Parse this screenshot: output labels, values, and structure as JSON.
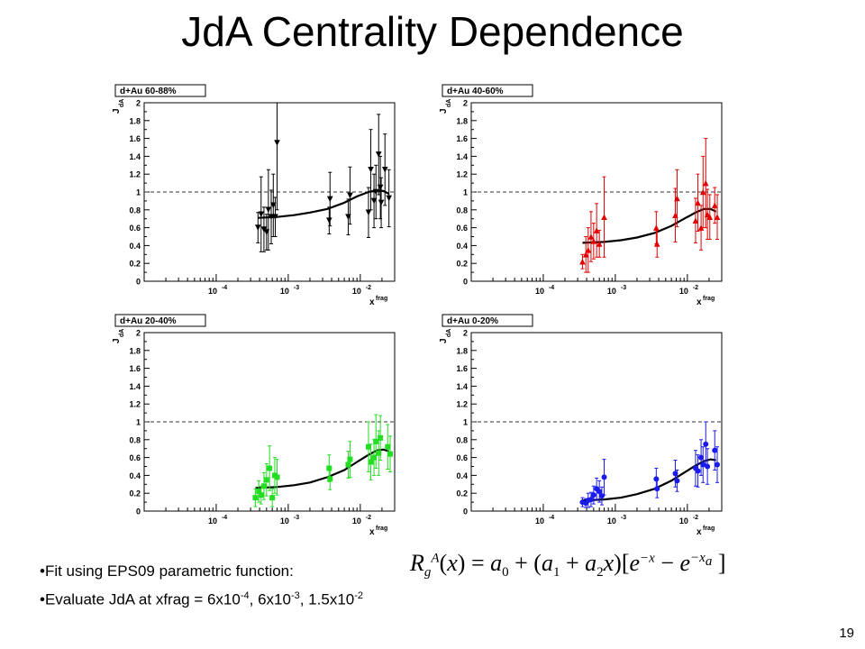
{
  "slide": {
    "title": "JdA Centrality Dependence",
    "bullet1": "Fit using EPS09 parametric function:",
    "bullet2_text": "Evaluate JdA at xfrag = 6x10",
    "bullet2_exp1": "-4",
    "bullet2_mid1": ", 6x10",
    "bullet2_exp2": "-3",
    "bullet2_mid2": ", 1.5x10",
    "bullet2_exp3": "-2",
    "page_number": "19"
  },
  "chart_data": [
    {
      "type": "scatter",
      "title": "d+Au 60-88%",
      "xlabel": "x frag",
      "ylabel": "J dA",
      "xscale": "log",
      "xlim": [
        1e-05,
        0.03
      ],
      "ylim": [
        0,
        2
      ],
      "yticks": [
        "0",
        "0.2",
        "0.4",
        "0.6",
        "0.8",
        "1",
        "1.2",
        "1.4",
        "1.6",
        "1.8",
        "2"
      ],
      "xticks": [
        "10^-4",
        "10^-3",
        "10^-2"
      ],
      "reference_line": 1,
      "marker": "triangle-down",
      "color": "#000000",
      "points": [
        {
          "x": 0.00038,
          "y": 0.6,
          "err": 0.17
        },
        {
          "x": 0.00042,
          "y": 0.75,
          "err": 0.42
        },
        {
          "x": 0.00046,
          "y": 0.58,
          "err": 0.25
        },
        {
          "x": 0.0005,
          "y": 0.55,
          "err": 0.2
        },
        {
          "x": 0.00053,
          "y": 0.8,
          "err": 0.45
        },
        {
          "x": 0.00058,
          "y": 0.72,
          "err": 0.3
        },
        {
          "x": 0.00062,
          "y": 0.85,
          "err": 0.35
        },
        {
          "x": 0.00066,
          "y": 0.72,
          "err": 0.22
        },
        {
          "x": 0.0007,
          "y": 1.55,
          "err": 0.75
        },
        {
          "x": 0.0037,
          "y": 0.68,
          "err": 0.15
        },
        {
          "x": 0.0038,
          "y": 0.92,
          "err": 0.3
        },
        {
          "x": 0.0068,
          "y": 0.72,
          "err": 0.2
        },
        {
          "x": 0.0072,
          "y": 0.96,
          "err": 0.32
        },
        {
          "x": 0.013,
          "y": 0.77,
          "err": 0.28
        },
        {
          "x": 0.014,
          "y": 1.25,
          "err": 0.45
        },
        {
          "x": 0.0155,
          "y": 0.9,
          "err": 0.3
        },
        {
          "x": 0.0165,
          "y": 1.0,
          "err": 0.3
        },
        {
          "x": 0.018,
          "y": 1.42,
          "err": 0.45
        },
        {
          "x": 0.019,
          "y": 1.05,
          "err": 0.35
        },
        {
          "x": 0.0195,
          "y": 0.88,
          "err": 0.28
        },
        {
          "x": 0.022,
          "y": 1.25,
          "err": 0.4
        },
        {
          "x": 0.025,
          "y": 0.93,
          "err": 0.32
        }
      ],
      "fit": [
        {
          "x": 0.00038,
          "y": 0.71
        },
        {
          "x": 0.0007,
          "y": 0.72
        },
        {
          "x": 0.0012,
          "y": 0.74
        },
        {
          "x": 0.002,
          "y": 0.77
        },
        {
          "x": 0.0035,
          "y": 0.81
        },
        {
          "x": 0.006,
          "y": 0.88
        },
        {
          "x": 0.009,
          "y": 0.95
        },
        {
          "x": 0.013,
          "y": 1.0
        },
        {
          "x": 0.017,
          "y": 1.02
        },
        {
          "x": 0.021,
          "y": 1.01
        },
        {
          "x": 0.025,
          "y": 0.98
        }
      ]
    },
    {
      "type": "scatter",
      "title": "d+Au 40-60%",
      "xlabel": "x frag",
      "ylabel": "J dA",
      "xscale": "log",
      "xlim": [
        1e-05,
        0.03
      ],
      "ylim": [
        0,
        2
      ],
      "yticks": [
        "0",
        "0.2",
        "0.4",
        "0.6",
        "0.8",
        "1",
        "1.2",
        "1.4",
        "1.6",
        "1.8",
        "2"
      ],
      "xticks": [
        "10^-4",
        "10^-3",
        "10^-2"
      ],
      "reference_line": 1,
      "marker": "triangle-up",
      "color": "#e00000",
      "points": [
        {
          "x": 0.00035,
          "y": 0.22,
          "err": 0.08
        },
        {
          "x": 0.00039,
          "y": 0.3,
          "err": 0.2
        },
        {
          "x": 0.00042,
          "y": 0.35,
          "err": 0.25
        },
        {
          "x": 0.00046,
          "y": 0.5,
          "err": 0.28
        },
        {
          "x": 0.0005,
          "y": 0.45,
          "err": 0.2
        },
        {
          "x": 0.00055,
          "y": 0.57,
          "err": 0.3
        },
        {
          "x": 0.0006,
          "y": 0.42,
          "err": 0.15
        },
        {
          "x": 0.0007,
          "y": 0.72,
          "err": 0.45
        },
        {
          "x": 0.0037,
          "y": 0.6,
          "err": 0.18
        },
        {
          "x": 0.0038,
          "y": 0.42,
          "err": 0.15
        },
        {
          "x": 0.0068,
          "y": 0.74,
          "err": 0.3
        },
        {
          "x": 0.0072,
          "y": 0.93,
          "err": 0.32
        },
        {
          "x": 0.013,
          "y": 0.68,
          "err": 0.25
        },
        {
          "x": 0.014,
          "y": 0.88,
          "err": 0.32
        },
        {
          "x": 0.0155,
          "y": 0.6,
          "err": 0.25
        },
        {
          "x": 0.0165,
          "y": 1.0,
          "err": 0.4
        },
        {
          "x": 0.018,
          "y": 1.1,
          "err": 0.5
        },
        {
          "x": 0.019,
          "y": 0.75,
          "err": 0.28
        },
        {
          "x": 0.0205,
          "y": 0.72,
          "err": 0.25
        },
        {
          "x": 0.024,
          "y": 0.85,
          "err": 0.2
        },
        {
          "x": 0.026,
          "y": 0.72,
          "err": 0.25
        }
      ],
      "fit": [
        {
          "x": 0.00035,
          "y": 0.43
        },
        {
          "x": 0.0007,
          "y": 0.44
        },
        {
          "x": 0.0012,
          "y": 0.46
        },
        {
          "x": 0.002,
          "y": 0.49
        },
        {
          "x": 0.0035,
          "y": 0.54
        },
        {
          "x": 0.006,
          "y": 0.62
        },
        {
          "x": 0.009,
          "y": 0.7
        },
        {
          "x": 0.013,
          "y": 0.77
        },
        {
          "x": 0.017,
          "y": 0.81
        },
        {
          "x": 0.021,
          "y": 0.81
        },
        {
          "x": 0.025,
          "y": 0.78
        }
      ]
    },
    {
      "type": "scatter",
      "title": "d+Au 20-40%",
      "xlabel": "x frag",
      "ylabel": "J dA",
      "xscale": "log",
      "xlim": [
        1e-05,
        0.03
      ],
      "ylim": [
        0,
        2
      ],
      "yticks": [
        "0",
        "0.2",
        "0.4",
        "0.6",
        "0.8",
        "1",
        "1.2",
        "1.4",
        "1.6",
        "1.8",
        "2"
      ],
      "xticks": [
        "10^-4",
        "10^-3",
        "10^-2"
      ],
      "reference_line": 1,
      "marker": "square",
      "color": "#22dd22",
      "points": [
        {
          "x": 0.00035,
          "y": 0.15,
          "err": 0.1
        },
        {
          "x": 0.00039,
          "y": 0.22,
          "err": 0.12
        },
        {
          "x": 0.00042,
          "y": 0.18,
          "err": 0.1
        },
        {
          "x": 0.00046,
          "y": 0.28,
          "err": 0.15
        },
        {
          "x": 0.0005,
          "y": 0.35,
          "err": 0.18
        },
        {
          "x": 0.00055,
          "y": 0.48,
          "err": 0.25
        },
        {
          "x": 0.0006,
          "y": 0.15,
          "err": 0.1
        },
        {
          "x": 0.00065,
          "y": 0.4,
          "err": 0.2
        },
        {
          "x": 0.0007,
          "y": 0.38,
          "err": 0.2
        },
        {
          "x": 0.0037,
          "y": 0.48,
          "err": 0.15
        },
        {
          "x": 0.0038,
          "y": 0.36,
          "err": 0.12
        },
        {
          "x": 0.0068,
          "y": 0.52,
          "err": 0.15
        },
        {
          "x": 0.0072,
          "y": 0.58,
          "err": 0.2
        },
        {
          "x": 0.013,
          "y": 0.72,
          "err": 0.28
        },
        {
          "x": 0.014,
          "y": 0.55,
          "err": 0.2
        },
        {
          "x": 0.0155,
          "y": 0.6,
          "err": 0.2
        },
        {
          "x": 0.0165,
          "y": 0.78,
          "err": 0.3
        },
        {
          "x": 0.018,
          "y": 0.65,
          "err": 0.25
        },
        {
          "x": 0.019,
          "y": 0.82,
          "err": 0.25
        },
        {
          "x": 0.024,
          "y": 0.72,
          "err": 0.25
        },
        {
          "x": 0.026,
          "y": 0.64,
          "err": 0.2
        }
      ],
      "fit": [
        {
          "x": 0.00035,
          "y": 0.26
        },
        {
          "x": 0.0007,
          "y": 0.27
        },
        {
          "x": 0.0012,
          "y": 0.29
        },
        {
          "x": 0.002,
          "y": 0.32
        },
        {
          "x": 0.0035,
          "y": 0.38
        },
        {
          "x": 0.006,
          "y": 0.46
        },
        {
          "x": 0.009,
          "y": 0.55
        },
        {
          "x": 0.013,
          "y": 0.63
        },
        {
          "x": 0.017,
          "y": 0.68
        },
        {
          "x": 0.021,
          "y": 0.69
        },
        {
          "x": 0.025,
          "y": 0.67
        }
      ]
    },
    {
      "type": "scatter",
      "title": "d+Au 0-20%",
      "xlabel": "x frag",
      "ylabel": "J dA",
      "xscale": "log",
      "xlim": [
        1e-05,
        0.03
      ],
      "ylim": [
        0,
        2
      ],
      "yticks": [
        "0",
        "0.2",
        "0.4",
        "0.6",
        "0.8",
        "1",
        "1.2",
        "1.4",
        "1.6",
        "1.8",
        "2"
      ],
      "xticks": [
        "10^-4",
        "10^-3",
        "10^-2"
      ],
      "reference_line": 1,
      "marker": "circle",
      "color": "#1a1aee",
      "points": [
        {
          "x": 0.00035,
          "y": 0.1,
          "err": 0.05
        },
        {
          "x": 0.00039,
          "y": 0.09,
          "err": 0.05
        },
        {
          "x": 0.00042,
          "y": 0.12,
          "err": 0.08
        },
        {
          "x": 0.00046,
          "y": 0.13,
          "err": 0.08
        },
        {
          "x": 0.0005,
          "y": 0.18,
          "err": 0.1
        },
        {
          "x": 0.00055,
          "y": 0.25,
          "err": 0.12
        },
        {
          "x": 0.0006,
          "y": 0.22,
          "err": 0.12
        },
        {
          "x": 0.00065,
          "y": 0.17,
          "err": 0.1
        },
        {
          "x": 0.0007,
          "y": 0.38,
          "err": 0.2
        },
        {
          "x": 0.0037,
          "y": 0.36,
          "err": 0.12
        },
        {
          "x": 0.0038,
          "y": 0.25,
          "err": 0.1
        },
        {
          "x": 0.0068,
          "y": 0.42,
          "err": 0.15
        },
        {
          "x": 0.0072,
          "y": 0.34,
          "err": 0.12
        },
        {
          "x": 0.013,
          "y": 0.48,
          "err": 0.2
        },
        {
          "x": 0.014,
          "y": 0.45,
          "err": 0.18
        },
        {
          "x": 0.0155,
          "y": 0.6,
          "err": 0.2
        },
        {
          "x": 0.0165,
          "y": 0.52,
          "err": 0.2
        },
        {
          "x": 0.018,
          "y": 0.75,
          "err": 0.25
        },
        {
          "x": 0.019,
          "y": 0.5,
          "err": 0.2
        },
        {
          "x": 0.024,
          "y": 0.68,
          "err": 0.22
        },
        {
          "x": 0.026,
          "y": 0.52,
          "err": 0.2
        }
      ],
      "fit": [
        {
          "x": 0.00035,
          "y": 0.12
        },
        {
          "x": 0.0007,
          "y": 0.13
        },
        {
          "x": 0.0012,
          "y": 0.15
        },
        {
          "x": 0.002,
          "y": 0.19
        },
        {
          "x": 0.0035,
          "y": 0.25
        },
        {
          "x": 0.006,
          "y": 0.34
        },
        {
          "x": 0.009,
          "y": 0.43
        },
        {
          "x": 0.013,
          "y": 0.51
        },
        {
          "x": 0.017,
          "y": 0.56
        },
        {
          "x": 0.021,
          "y": 0.58
        },
        {
          "x": 0.025,
          "y": 0.57
        }
      ]
    }
  ]
}
